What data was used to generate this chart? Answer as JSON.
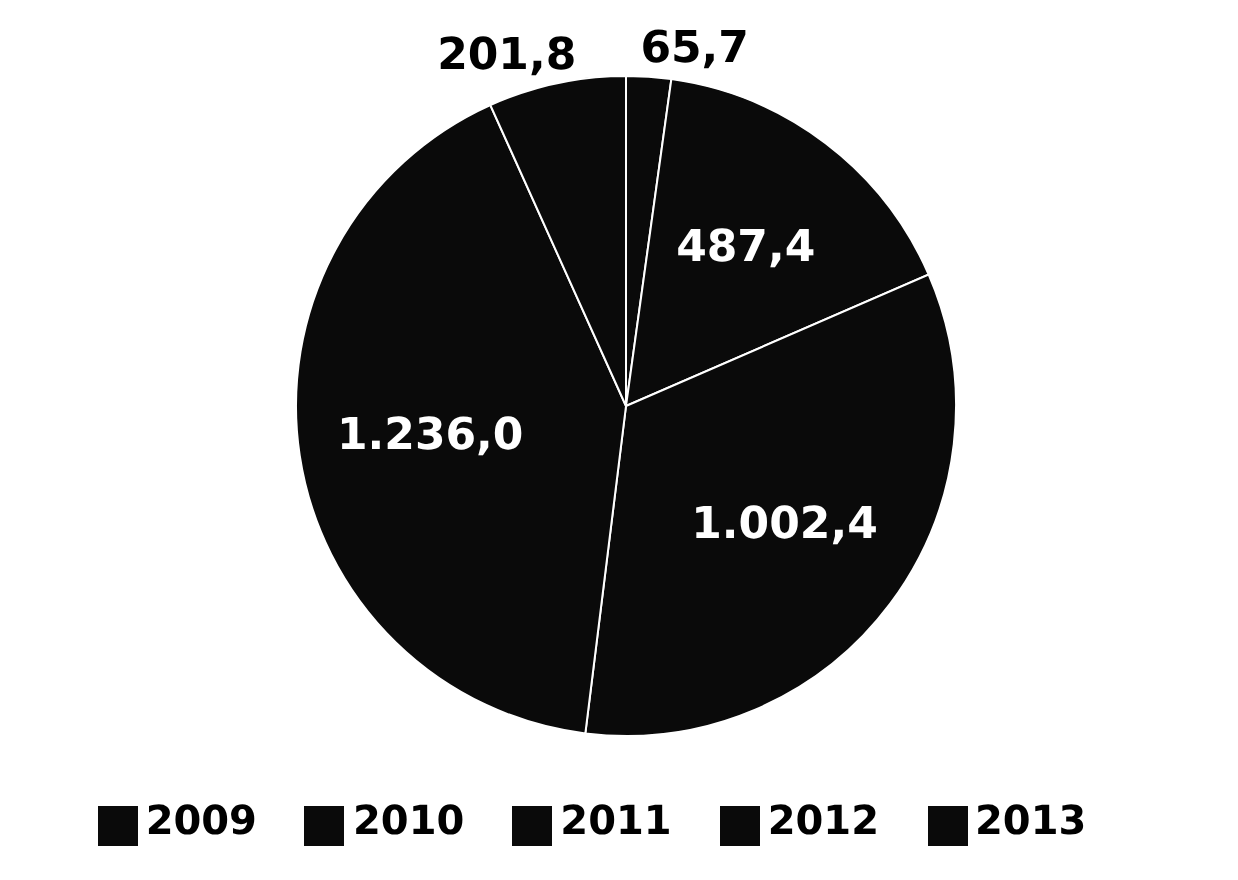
{
  "chart_data": {
    "type": "pie",
    "categories": [
      "2009",
      "2010",
      "2011",
      "2012",
      "2013"
    ],
    "values": [
      65.7,
      487.4,
      1002.4,
      1236.0,
      201.8
    ],
    "value_labels": [
      "65,7",
      "487,4",
      "1.002,4",
      "1.236,0",
      "201,8"
    ],
    "colors": [
      "#0a0a0a",
      "#0a0a0a",
      "#0a0a0a",
      "#0a0a0a",
      "#0a0a0a"
    ],
    "legend": "bottom"
  }
}
